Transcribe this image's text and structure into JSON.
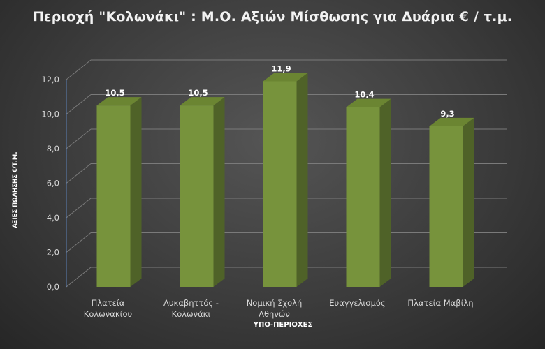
{
  "chart_data": {
    "type": "bar",
    "title": "Περιοχή \"Κολωνάκι\" : Μ.Ο. Αξιών Μίσθωσης για Δυάρια € / τ.μ.",
    "xlabel": "ΥΠΟ-ΠΕΡΙΟΧΕΣ",
    "ylabel": "ΑΞΙΕΣ ΠΩΛΗΣΗΣ €/Τ.Μ.",
    "ylim": [
      0,
      12
    ],
    "yticks": [
      "0,0",
      "2,0",
      "4,0",
      "6,0",
      "8,0",
      "10,0",
      "12,0"
    ],
    "categories": [
      [
        "Πλατεία",
        "Κολωνακίου"
      ],
      [
        "Λυκαβηττός -",
        "Κολωνάκι"
      ],
      [
        "Νομική Σχολή",
        "Αθηνών"
      ],
      [
        "Ευαγγελισμός"
      ],
      [
        "Πλατεία Μαβίλη"
      ]
    ],
    "values": [
      10.5,
      10.5,
      11.9,
      10.4,
      9.3
    ],
    "data_labels": [
      "10,5",
      "10,5",
      "11,9",
      "10,4",
      "9,3"
    ],
    "grid": true,
    "legend": "none",
    "colors": {
      "bar_front": "#77933c",
      "bar_side": "#4f6228",
      "bar_top": "#6b8532",
      "gridline": "#7a7a7a"
    }
  }
}
